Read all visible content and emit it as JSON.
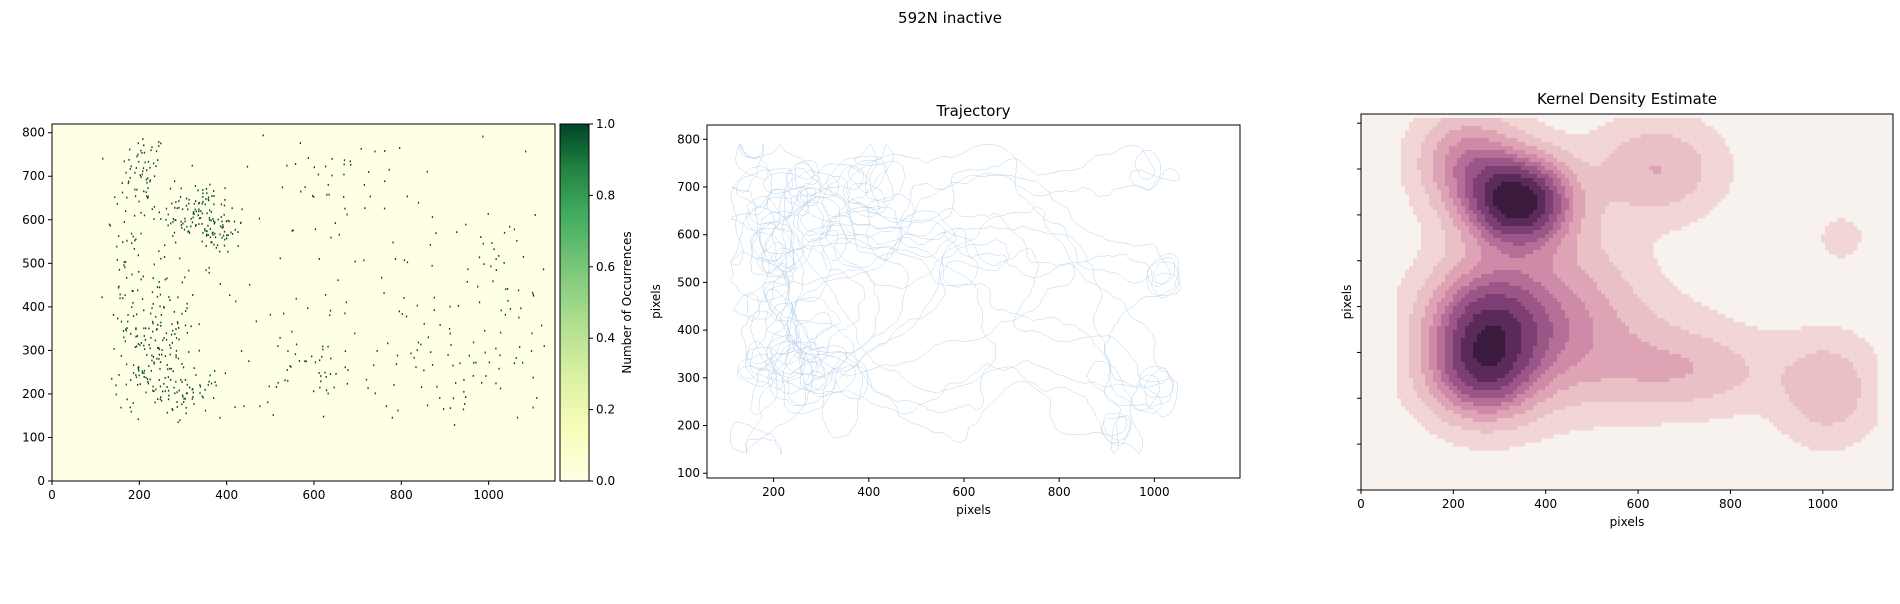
{
  "figure": {
    "title": "592N inactive"
  },
  "chart_data": [
    {
      "type": "heatmap",
      "title": "",
      "xlabel": "",
      "ylabel": "",
      "xlim": [
        0,
        1152
      ],
      "ylim": [
        0,
        820
      ],
      "xticks": [
        "0",
        "200",
        "400",
        "600",
        "800",
        "1000"
      ],
      "yticks": [
        "0",
        "100",
        "200",
        "300",
        "400",
        "500",
        "600",
        "700",
        "800"
      ],
      "colormap": "YlGn",
      "colorbar": {
        "label": "Number of Occurrences",
        "range": [
          0,
          1
        ],
        "ticks": [
          "0.0",
          "0.2",
          "0.4",
          "0.6",
          "0.8",
          "1.0"
        ]
      },
      "background_color": "#ffffe5",
      "point_color": "#004529",
      "clusters": [
        {
          "cx": 210,
          "cy": 720,
          "sx": 25,
          "sy": 40,
          "n": 50
        },
        {
          "cx": 330,
          "cy": 620,
          "sx": 45,
          "sy": 40,
          "n": 110
        },
        {
          "cx": 390,
          "cy": 570,
          "sx": 25,
          "sy": 20,
          "n": 40
        },
        {
          "cx": 240,
          "cy": 380,
          "sx": 40,
          "sy": 90,
          "n": 90
        },
        {
          "cx": 230,
          "cy": 260,
          "sx": 45,
          "sy": 50,
          "n": 110
        },
        {
          "cx": 320,
          "cy": 200,
          "sx": 35,
          "sy": 25,
          "n": 45
        },
        {
          "cx": 180,
          "cy": 520,
          "sx": 30,
          "sy": 90,
          "n": 50
        },
        {
          "cx": 620,
          "cy": 260,
          "sx": 60,
          "sy": 40,
          "n": 35
        },
        {
          "cx": 640,
          "cy": 680,
          "sx": 40,
          "sy": 60,
          "n": 25
        },
        {
          "cx": 970,
          "cy": 280,
          "sx": 90,
          "sy": 110,
          "n": 70
        },
        {
          "cx": 1020,
          "cy": 540,
          "sx": 60,
          "sy": 50,
          "n": 20
        },
        {
          "cx": 680,
          "cy": 380,
          "sx": 300,
          "sy": 240,
          "n": 160
        }
      ]
    },
    {
      "type": "line",
      "title": "Trajectory",
      "xlabel": "pixels",
      "ylabel": "pixels",
      "xlim": [
        60,
        1180
      ],
      "ylim": [
        90,
        830
      ],
      "xticks": [
        "200",
        "400",
        "600",
        "800",
        "1000"
      ],
      "yticks": [
        "100",
        "200",
        "300",
        "400",
        "500",
        "600",
        "700",
        "800"
      ],
      "line_color": "#a6c8e8",
      "bounds": {
        "x": [
          110,
          1120
        ],
        "y": [
          140,
          790
        ]
      },
      "hotspots": [
        {
          "x": 330,
          "y": 620
        },
        {
          "x": 260,
          "y": 300
        },
        {
          "x": 240,
          "y": 400
        },
        {
          "x": 980,
          "y": 260
        },
        {
          "x": 200,
          "y": 720
        }
      ]
    },
    {
      "type": "heatmap",
      "title": "Kernel Density Estimate",
      "xlabel": "pixels",
      "ylabel": "pixels",
      "xlim": [
        0,
        1152
      ],
      "ylim": [
        0,
        820
      ],
      "xticks": [
        "0",
        "200",
        "400",
        "600",
        "800",
        "1000"
      ],
      "yticks": [],
      "colormap": "PuRd",
      "background_color": "#f8f2ee",
      "levels": [
        "#f2d6d6",
        "#e9c0c6",
        "#dea4b6",
        "#ce8aa7",
        "#b46e97",
        "#9b5688",
        "#7c3e73",
        "#5a2a58",
        "#3a1a3d"
      ],
      "thresholds": [
        0.04,
        0.12,
        0.22,
        0.32,
        0.42,
        0.52,
        0.64,
        0.78,
        0.92
      ],
      "kernels": [
        {
          "x": 340,
          "y": 630,
          "sx": 75,
          "sy": 65,
          "w": 1.0
        },
        {
          "x": 230,
          "y": 720,
          "sx": 70,
          "sy": 70,
          "w": 0.35
        },
        {
          "x": 270,
          "y": 340,
          "sx": 85,
          "sy": 95,
          "w": 0.75
        },
        {
          "x": 260,
          "y": 240,
          "sx": 75,
          "sy": 60,
          "w": 0.3
        },
        {
          "x": 420,
          "y": 400,
          "sx": 110,
          "sy": 120,
          "w": 0.25
        },
        {
          "x": 640,
          "y": 700,
          "sx": 90,
          "sy": 70,
          "w": 0.22
        },
        {
          "x": 700,
          "y": 260,
          "sx": 130,
          "sy": 60,
          "w": 0.18
        },
        {
          "x": 1010,
          "y": 220,
          "sx": 70,
          "sy": 75,
          "w": 0.2
        },
        {
          "x": 1040,
          "y": 550,
          "sx": 30,
          "sy": 30,
          "w": 0.1
        },
        {
          "x": 500,
          "y": 320,
          "sx": 160,
          "sy": 90,
          "w": 0.12
        }
      ]
    }
  ]
}
